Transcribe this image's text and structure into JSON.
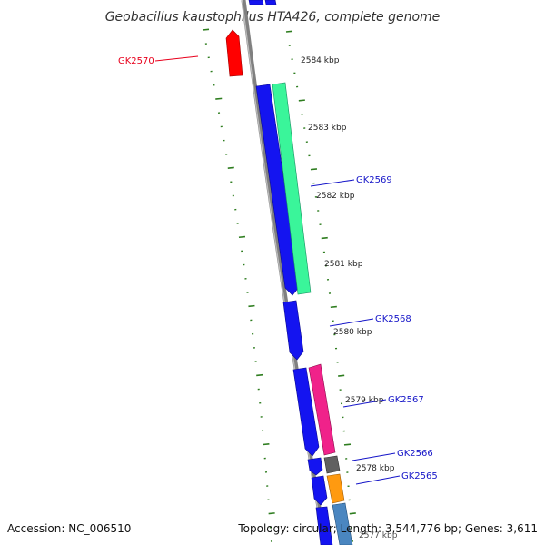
{
  "title": "Geobacillus kaustophilus HTA426, complete genome",
  "accession_text": "Accession: NC_006510",
  "topology_text": "Topology: circular; Length: 3,544,776 bp; Genes: 3,611",
  "colors": {
    "backbone": "#808080",
    "ticks": "#2e7d1f",
    "label_red": "#e8001c",
    "label_blue": "#1515c8",
    "gene_blue": "#1414f0",
    "gene_red": "#ff0000",
    "gene_green": "#3af59a",
    "gene_pink": "#f0228a",
    "gene_dark": "#606060",
    "gene_orange": "#ff9a10",
    "gene_steel": "#4a86c0"
  },
  "scale_ticks": [
    {
      "label": "2584 kbp"
    },
    {
      "label": "2583 kbp"
    },
    {
      "label": "2582 kbp"
    },
    {
      "label": "2581 kbp"
    },
    {
      "label": "2580 kbp"
    },
    {
      "label": "2579 kbp"
    },
    {
      "label": "2578 kbp"
    },
    {
      "label": "2577 kbp"
    }
  ],
  "gene_labels": [
    {
      "name": "GK2570",
      "color": "label_red"
    },
    {
      "name": "GK2569",
      "color": "label_blue"
    },
    {
      "name": "GK2568",
      "color": "label_blue"
    },
    {
      "name": "GK2567",
      "color": "label_blue"
    },
    {
      "name": "GK2566",
      "color": "label_blue"
    },
    {
      "name": "GK2565",
      "color": "label_blue"
    }
  ]
}
